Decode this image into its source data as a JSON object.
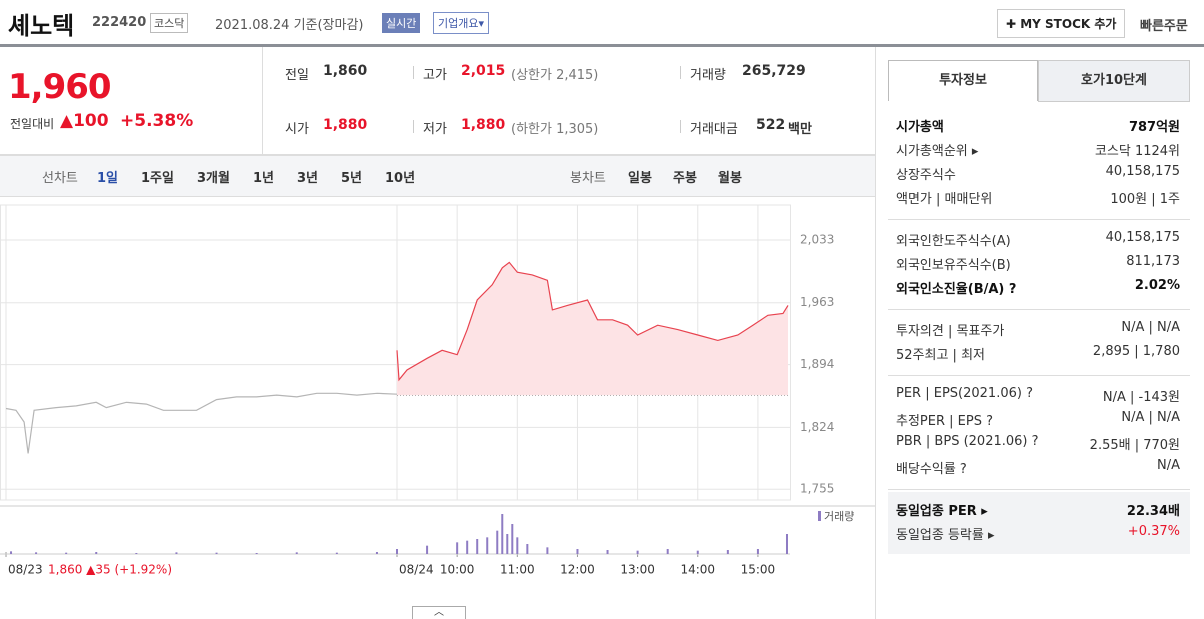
{
  "header": {
    "name": "셰노텍",
    "code": "222420",
    "market": "코스닥",
    "date": "2021.08.24 기준(장마감)",
    "realtime": "실시간",
    "company": "기업개요▾",
    "mystock": "✚ MY STOCK 추가",
    "quick_order": "빠른주문"
  },
  "summary": {
    "price": "1,960",
    "change_label": "전일대비",
    "change": "▲100",
    "change_pct": "+5.38%",
    "items": [
      {
        "label": "전일",
        "value": "1,860"
      },
      {
        "label": "고가",
        "value": "2,015",
        "extra": "(상한가 2,415)"
      },
      {
        "label": "거래량",
        "value": "265,729"
      },
      {
        "label": "시가",
        "value": "1,880"
      },
      {
        "label": "저가",
        "value": "1,880",
        "extra": "(하한가 1,305)"
      },
      {
        "label": "거래대금",
        "value": "522",
        "extra": "백만"
      }
    ]
  },
  "chart_tabs": {
    "line_label": "선차트",
    "line_periods": [
      "1일",
      "1주일",
      "3개월",
      "1년",
      "3년",
      "5년",
      "10년"
    ],
    "candle_label": "봉차트",
    "candle_periods": [
      "일봉",
      "주봉",
      "월봉"
    ]
  },
  "chart_data": {
    "type": "line",
    "xlim": [
      -396,
      392
    ],
    "ylim": [
      1743,
      2072
    ],
    "yticks": [
      {
        "value": 2033,
        "label": "2,033"
      },
      {
        "value": 1963,
        "label": "1,963"
      },
      {
        "value": 1894,
        "label": "1,894"
      },
      {
        "value": 1824,
        "label": "1,824"
      },
      {
        "value": 1755,
        "label": "1,755"
      }
    ],
    "xticks": [
      {
        "value": -390,
        "label": "08/23"
      },
      {
        "value": 0,
        "label": "08/24"
      },
      {
        "value": 60,
        "label": "10:00"
      },
      {
        "value": 120,
        "label": "11:00"
      },
      {
        "value": 180,
        "label": "12:00"
      },
      {
        "value": 240,
        "label": "13:00"
      },
      {
        "value": 300,
        "label": "14:00"
      },
      {
        "value": 360,
        "label": "15:00"
      }
    ],
    "annotation": "1,860 ▲35 (+1.92%)",
    "reference_line": 1860,
    "grid": true,
    "series": [
      {
        "color": "#b5b5b5",
        "x": [
          -390,
          -380,
          -372,
          -368,
          -362,
          -340,
          -320,
          -300,
          -290,
          -270,
          -250,
          -233,
          -220,
          -200,
          -180,
          -160,
          -140,
          -120,
          -100,
          -80,
          -60,
          -40,
          -20,
          0
        ],
        "values": [
          1845,
          1843,
          1830,
          1795,
          1843,
          1846,
          1848,
          1852,
          1846,
          1852,
          1850,
          1843,
          1843,
          1843,
          1855,
          1858,
          1858,
          1860,
          1858,
          1862,
          1862,
          1860,
          1862,
          1861
        ]
      },
      {
        "color": "#e8434f",
        "fill": "#fde3e5",
        "x": [
          0,
          2,
          10,
          30,
          45,
          60,
          70,
          80,
          95,
          105,
          112,
          120,
          135,
          150,
          155,
          170,
          190,
          200,
          215,
          230,
          240,
          260,
          280,
          300,
          320,
          340,
          355,
          370,
          385,
          390
        ],
        "values": [
          1910,
          1877,
          1888,
          1901,
          1910,
          1905,
          1933,
          1966,
          1983,
          2002,
          2008,
          1997,
          1994,
          1988,
          1955,
          1960,
          1966,
          1944,
          1944,
          1938,
          1927,
          1938,
          1933,
          1927,
          1921,
          1927,
          1938,
          1949,
          1951,
          1960
        ]
      }
    ],
    "volume": {
      "name": "거래량",
      "color": "#8e7cc3",
      "x": [
        -385,
        -360,
        -330,
        -300,
        -260,
        -220,
        -180,
        -140,
        -100,
        -60,
        -20,
        0,
        30,
        60,
        70,
        80,
        90,
        100,
        105,
        110,
        115,
        120,
        130,
        150,
        180,
        210,
        240,
        270,
        300,
        330,
        360,
        389
      ],
      "values": [
        800,
        500,
        400,
        600,
        300,
        500,
        400,
        300,
        500,
        400,
        600,
        1500,
        2500,
        3500,
        4000,
        4500,
        5000,
        7000,
        12000,
        6000,
        9000,
        5000,
        3000,
        2000,
        1500,
        1200,
        1000,
        1500,
        1000,
        1200,
        1500,
        6000
      ]
    }
  },
  "info": {
    "tabs": [
      "투자정보",
      "호가10단계"
    ],
    "groups": [
      [
        {
          "label": "시가총액",
          "value": "787억원"
        },
        {
          "label": "시가총액순위 ▸",
          "value": "코스닥 1124위"
        },
        {
          "label": "상장주식수",
          "value": "40,158,175"
        },
        {
          "label": "액면가 | 매매단위",
          "value": "100원 | 1주"
        }
      ],
      [
        {
          "label": "외국인한도주식수(A)",
          "value": "40,158,175"
        },
        {
          "label": "외국인보유주식수(B)",
          "value": "811,173"
        },
        {
          "label": "외국인소진율(B/A) ?",
          "value": "2.02%"
        }
      ],
      [
        {
          "label": "투자의견 | 목표주가",
          "value": "N/A | N/A"
        },
        {
          "label": "52주최고 | 최저",
          "value": "2,895 | 1,780"
        }
      ],
      [
        {
          "label": "PER | EPS(2021.06) ?",
          "value": "N/A | -143원"
        },
        {
          "label": "추정PER | EPS ?",
          "value": "N/A | N/A"
        },
        {
          "label": "PBR | BPS (2021.06) ?",
          "value": "2.55배 | 770원"
        },
        {
          "label": "배당수익률 ?",
          "value": "N/A"
        }
      ],
      [
        {
          "label": "동일업종 PER ▸",
          "value": "22.34배"
        },
        {
          "label": "동일업종 등락률 ▸",
          "value": "+0.37%"
        }
      ]
    ]
  }
}
